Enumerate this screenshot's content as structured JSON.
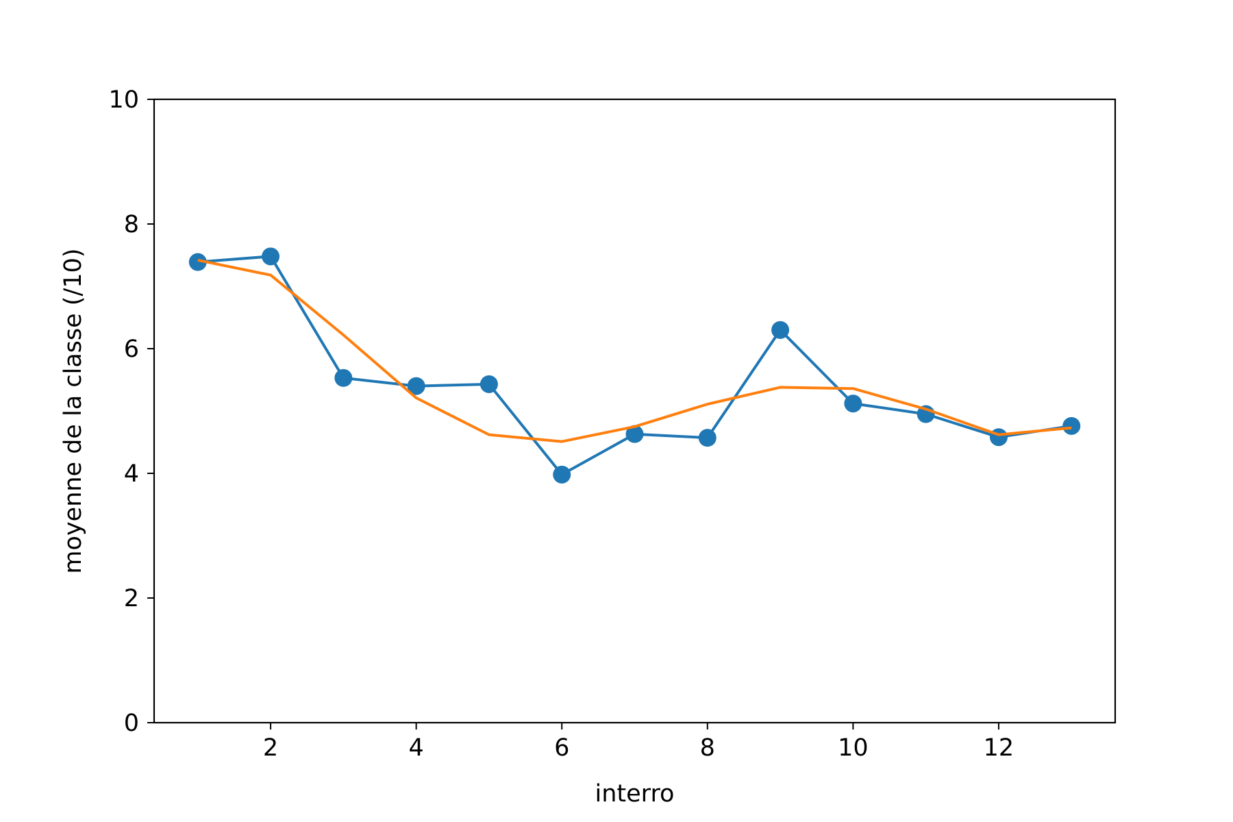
{
  "chart_data": {
    "type": "line",
    "title": "",
    "xlabel": "interro",
    "ylabel": "moyenne de la classe (/10)",
    "xlim": [
      0.4,
      13.6
    ],
    "ylim": [
      0,
      10
    ],
    "xticks": [
      2,
      4,
      6,
      8,
      10,
      12
    ],
    "yticks": [
      0,
      2,
      4,
      6,
      8,
      10
    ],
    "grid": false,
    "series": [
      {
        "color": "#1f77b4",
        "markers": true,
        "x": [
          1,
          2,
          3,
          4,
          5,
          6,
          7,
          8,
          9,
          10,
          11,
          12,
          13
        ],
        "y": [
          7.39,
          7.48,
          5.53,
          5.4,
          5.43,
          3.98,
          4.63,
          4.57,
          6.3,
          5.12,
          4.95,
          4.58,
          4.76
        ]
      },
      {
        "color": "#ff7f0e",
        "markers": false,
        "x": [
          1,
          2,
          3,
          4,
          5,
          6,
          7,
          8,
          9,
          10,
          11,
          12,
          13
        ],
        "y": [
          7.42,
          7.18,
          6.22,
          5.21,
          4.62,
          4.51,
          4.75,
          5.11,
          5.38,
          5.36,
          5.03,
          4.62,
          4.73
        ]
      }
    ]
  }
}
